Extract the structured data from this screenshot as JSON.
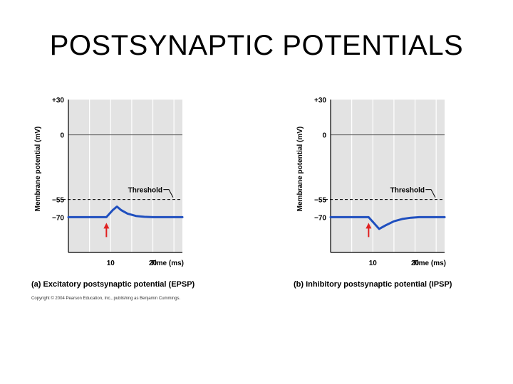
{
  "slide": {
    "title": "POSTSYNAPTIC POTENTIALS",
    "copyright": "Copyright © 2004 Pearson Education, Inc., publishing as Benjamin Cummings."
  },
  "colors": {
    "trace": "#1f4fbf",
    "plot_bg": "#e3e3e3",
    "arrow": "#e02020",
    "gridline": "#ffffff",
    "axis": "#000000"
  },
  "chart_data": [
    {
      "type": "line",
      "caption": "(a) Excitatory postsynaptic potential (EPSP)",
      "ylabel": "Membrane potential (mV)",
      "xlabel": "Time (ms)",
      "xlim": [
        0,
        27
      ],
      "ylim": [
        -100,
        30
      ],
      "x_ticks": [
        10,
        20
      ],
      "y_ticks": [
        {
          "value": 30,
          "label": "+30"
        },
        {
          "value": 0,
          "label": "0"
        },
        {
          "value": -55,
          "label": "−55"
        },
        {
          "value": -70,
          "label": "−70"
        }
      ],
      "threshold": {
        "value": -55,
        "label": "Threshold"
      },
      "stimulus_time": 9,
      "series": [
        {
          "x": [
            0,
            9,
            10.5,
            11.5,
            12.5,
            14,
            16,
            18,
            20,
            23,
            27
          ],
          "y": [
            -70,
            -70,
            -64,
            -61,
            -64,
            -67,
            -69,
            -69.7,
            -70,
            -70,
            -70
          ]
        }
      ],
      "grid": true
    },
    {
      "type": "line",
      "caption": "(b) Inhibitory postsynaptic potential (IPSP)",
      "ylabel": "Membrane potential (mV)",
      "xlabel": "Time (ms)",
      "xlim": [
        0,
        27
      ],
      "ylim": [
        -100,
        30
      ],
      "x_ticks": [
        10,
        20
      ],
      "y_ticks": [
        {
          "value": 30,
          "label": "+30"
        },
        {
          "value": 0,
          "label": "0"
        },
        {
          "value": -55,
          "label": "−55"
        },
        {
          "value": -70,
          "label": "−70"
        }
      ],
      "threshold": {
        "value": -55,
        "label": "Threshold"
      },
      "stimulus_time": 9,
      "series": [
        {
          "x": [
            0,
            9,
            10,
            11.5,
            13,
            15,
            17,
            19,
            21,
            23,
            27
          ],
          "y": [
            -70,
            -70,
            -74,
            -80,
            -77,
            -73.5,
            -71.5,
            -70.5,
            -70,
            -70,
            -70
          ]
        }
      ],
      "grid": true
    }
  ]
}
